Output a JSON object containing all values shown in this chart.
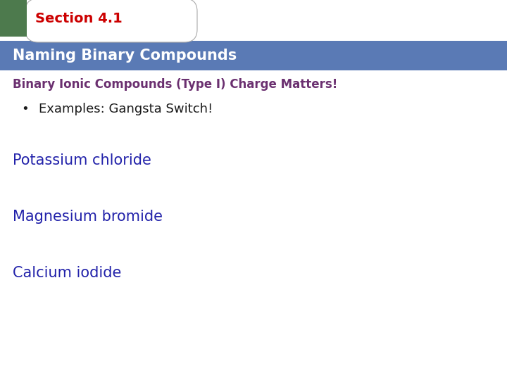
{
  "section_label": "Section 4.1",
  "section_label_color": "#cc0000",
  "section_label_bg": "#4d7a4d",
  "banner_text": "Naming Binary Compounds",
  "banner_bg": "#5a7ab5",
  "banner_text_color": "#ffffff",
  "subtitle": "Binary Ionic Compounds (Type I) Charge Matters!",
  "subtitle_color": "#6b3070",
  "bullet_text": "Examples: Gangsta Switch!",
  "bullet_color": "#1a1a1a",
  "items": [
    "Potassium chloride",
    "Magnesium bromide",
    "Calcium iodide"
  ],
  "items_color": "#2222aa",
  "bg_color": "#ffffff",
  "tab_bg": "#ffffff",
  "tab_edge_color": "#aaaaaa",
  "green_color": "#4d7a4d"
}
